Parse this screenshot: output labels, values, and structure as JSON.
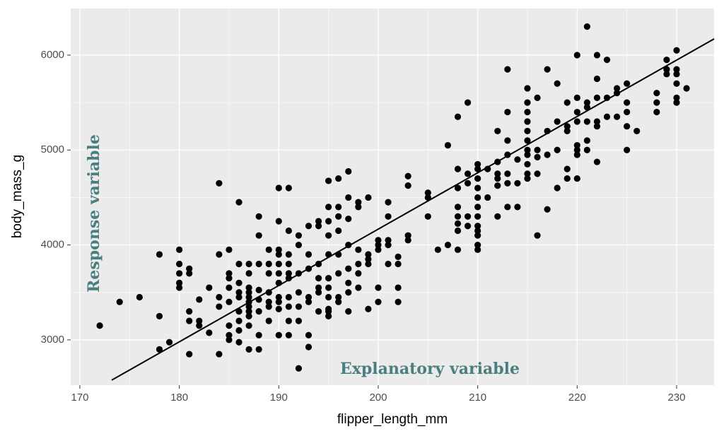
{
  "chart_data": {
    "type": "scatter",
    "x_label": "flipper_length_mm",
    "y_label": "body_mass_g",
    "annotations": [
      "Response variable",
      "Explanatory variable"
    ],
    "annotation_color": "#4a7f80",
    "xlim": [
      169.08,
      233.77
    ],
    "ylim": [
      2523,
      6491
    ],
    "xticks": [
      170,
      180,
      190,
      200,
      210,
      220,
      230
    ],
    "yticks": [
      3000,
      4000,
      5000,
      6000
    ],
    "grid": true,
    "series": [
      {
        "color": "#000000",
        "x": [
          172,
          174,
          176,
          178,
          178,
          178,
          179,
          180,
          180,
          180,
          180,
          180,
          181,
          181,
          181,
          181,
          181,
          182,
          182,
          182,
          183,
          183,
          184,
          184,
          184,
          184,
          184,
          185,
          185,
          185,
          185,
          185,
          185,
          185,
          185,
          186,
          186,
          186,
          186,
          186,
          186,
          186,
          186,
          186,
          187,
          187,
          187,
          187,
          187,
          187,
          187,
          187,
          187,
          187,
          187,
          188,
          188,
          188,
          188,
          188,
          188,
          188,
          188,
          189,
          189,
          189,
          189,
          189,
          189,
          189,
          190,
          190,
          190,
          190,
          190,
          190,
          190,
          190,
          190,
          190,
          190,
          191,
          191,
          191,
          191,
          191,
          191,
          191,
          191,
          191,
          191,
          192,
          192,
          192,
          192,
          192,
          192,
          192,
          193,
          193,
          193,
          193,
          193,
          193,
          193,
          194,
          194,
          194,
          194,
          194,
          194,
          194,
          195,
          195,
          195,
          195,
          195,
          195,
          195,
          195,
          195,
          195,
          195,
          196,
          196,
          196,
          196,
          196,
          196,
          196,
          196,
          197,
          197,
          197,
          197,
          197,
          197,
          197,
          197,
          198,
          198,
          198,
          198,
          198,
          198,
          199,
          199,
          199,
          199,
          199,
          200,
          200,
          200,
          200,
          200,
          201,
          201,
          201,
          201,
          201,
          202,
          202,
          202,
          202,
          203,
          203,
          203,
          203,
          205,
          205,
          205,
          206,
          207,
          207,
          208,
          208,
          208,
          208,
          208,
          208,
          208,
          208,
          209,
          209,
          209,
          209,
          209,
          210,
          210,
          210,
          210,
          210,
          210,
          210,
          210,
          210,
          210,
          210,
          210,
          211,
          211,
          212,
          212,
          212,
          212,
          212,
          212,
          213,
          213,
          213,
          213,
          213,
          213,
          213,
          214,
          214,
          214,
          215,
          215,
          215,
          215,
          215,
          215,
          215,
          215,
          215,
          215,
          215,
          216,
          216,
          216,
          216,
          216,
          217,
          217,
          217,
          217,
          218,
          218,
          218,
          218,
          219,
          219,
          219,
          219,
          219,
          220,
          220,
          220,
          220,
          220,
          220,
          220,
          220,
          221,
          221,
          221,
          221,
          221,
          221,
          222,
          222,
          222,
          222,
          222,
          222,
          223,
          223,
          223,
          224,
          224,
          224,
          225,
          225,
          225,
          225,
          225,
          226,
          228,
          228,
          228,
          229,
          229,
          229,
          230,
          230,
          230,
          230,
          230,
          230,
          231
        ],
        "values": [
          3150,
          3400,
          3450,
          3900,
          3250,
          2900,
          2975,
          3950,
          3800,
          3700,
          3600,
          3550,
          3750,
          3700,
          3300,
          3200,
          2850,
          3200,
          3150,
          3425,
          3550,
          3075,
          4650,
          3900,
          3450,
          3350,
          2850,
          3950,
          3700,
          3650,
          3550,
          3400,
          3150,
          3050,
          3000,
          4450,
          3800,
          3600,
          3500,
          3450,
          3300,
          3200,
          3100,
          2975,
          3800,
          3700,
          3550,
          3500,
          3450,
          3400,
          3350,
          3300,
          3250,
          3150,
          2900,
          4300,
          4100,
          3800,
          3525,
          3425,
          3300,
          3050,
          2900,
          3950,
          3800,
          3700,
          3500,
          3400,
          3350,
          3200,
          4600,
          4250,
          3950,
          3900,
          3800,
          3700,
          3600,
          3450,
          3400,
          3325,
          3050,
          4600,
          4150,
          3900,
          3800,
          3700,
          3650,
          3450,
          3350,
          3200,
          3050,
          4100,
          4000,
          3700,
          3500,
          3350,
          3200,
          2700,
          4200,
          3900,
          3750,
          3450,
          3400,
          3050,
          2925,
          4250,
          4200,
          3800,
          3650,
          3550,
          3500,
          3300,
          4675,
          4400,
          4250,
          4100,
          3900,
          3650,
          3550,
          3450,
          3325,
          3300,
          3250,
          4700,
          4400,
          4300,
          4150,
          3900,
          3700,
          3450,
          3400,
          4775,
          4500,
          4275,
          4000,
          3750,
          3600,
          3500,
          3300,
          4450,
          4400,
          3950,
          3800,
          3700,
          3550,
          4500,
          3900,
          3800,
          3325,
          3850,
          4050,
          4000,
          3950,
          3550,
          3400,
          4450,
          4300,
          4050,
          4000,
          3800,
          3875,
          3550,
          3400,
          3800,
          4725,
          4625,
          4100,
          4050,
          4550,
          4500,
          4300,
          3950,
          5050,
          4000,
          5350,
          4800,
          4600,
          4400,
          4300,
          4225,
          4150,
          3950,
          5500,
          4750,
          4650,
          4300,
          4200,
          4850,
          4800,
          4700,
          4600,
          4500,
          4400,
          4300,
          4200,
          4150,
          4100,
          4000,
          3950,
          4800,
          4500,
          5200,
          4875,
          4750,
          4700,
          4625,
          4300,
          5850,
          5400,
          5100,
          4950,
          4750,
          4650,
          4400,
          4900,
          4650,
          4400,
          5650,
          5500,
          5400,
          5300,
          5200,
          5100,
          5000,
          4950,
          4850,
          4750,
          4700,
          5550,
          5000,
          4925,
          4750,
          4100,
          5850,
          5200,
          4950,
          4375,
          5700,
          5300,
          5000,
          4600,
          5500,
          5250,
          5200,
          4800,
          4700,
          6000,
          5550,
          5400,
          5300,
          5050,
          5000,
          4950,
          4700,
          6300,
          5500,
          5450,
          5300,
          5100,
          5000,
          6000,
          5750,
          5550,
          5300,
          5250,
          4875,
          5950,
          5550,
          5350,
          5650,
          5600,
          5350,
          5700,
          5500,
          5400,
          5250,
          5000,
          5200,
          5600,
          5500,
          5400,
          5950,
          5850,
          5800,
          6050,
          5850,
          5800,
          5700,
          5550,
          5500,
          5650
        ]
      }
    ],
    "trend": {
      "color": "#000000",
      "x": [
        173.2,
        233.77
      ],
      "values": [
        2576,
        6171
      ]
    }
  }
}
